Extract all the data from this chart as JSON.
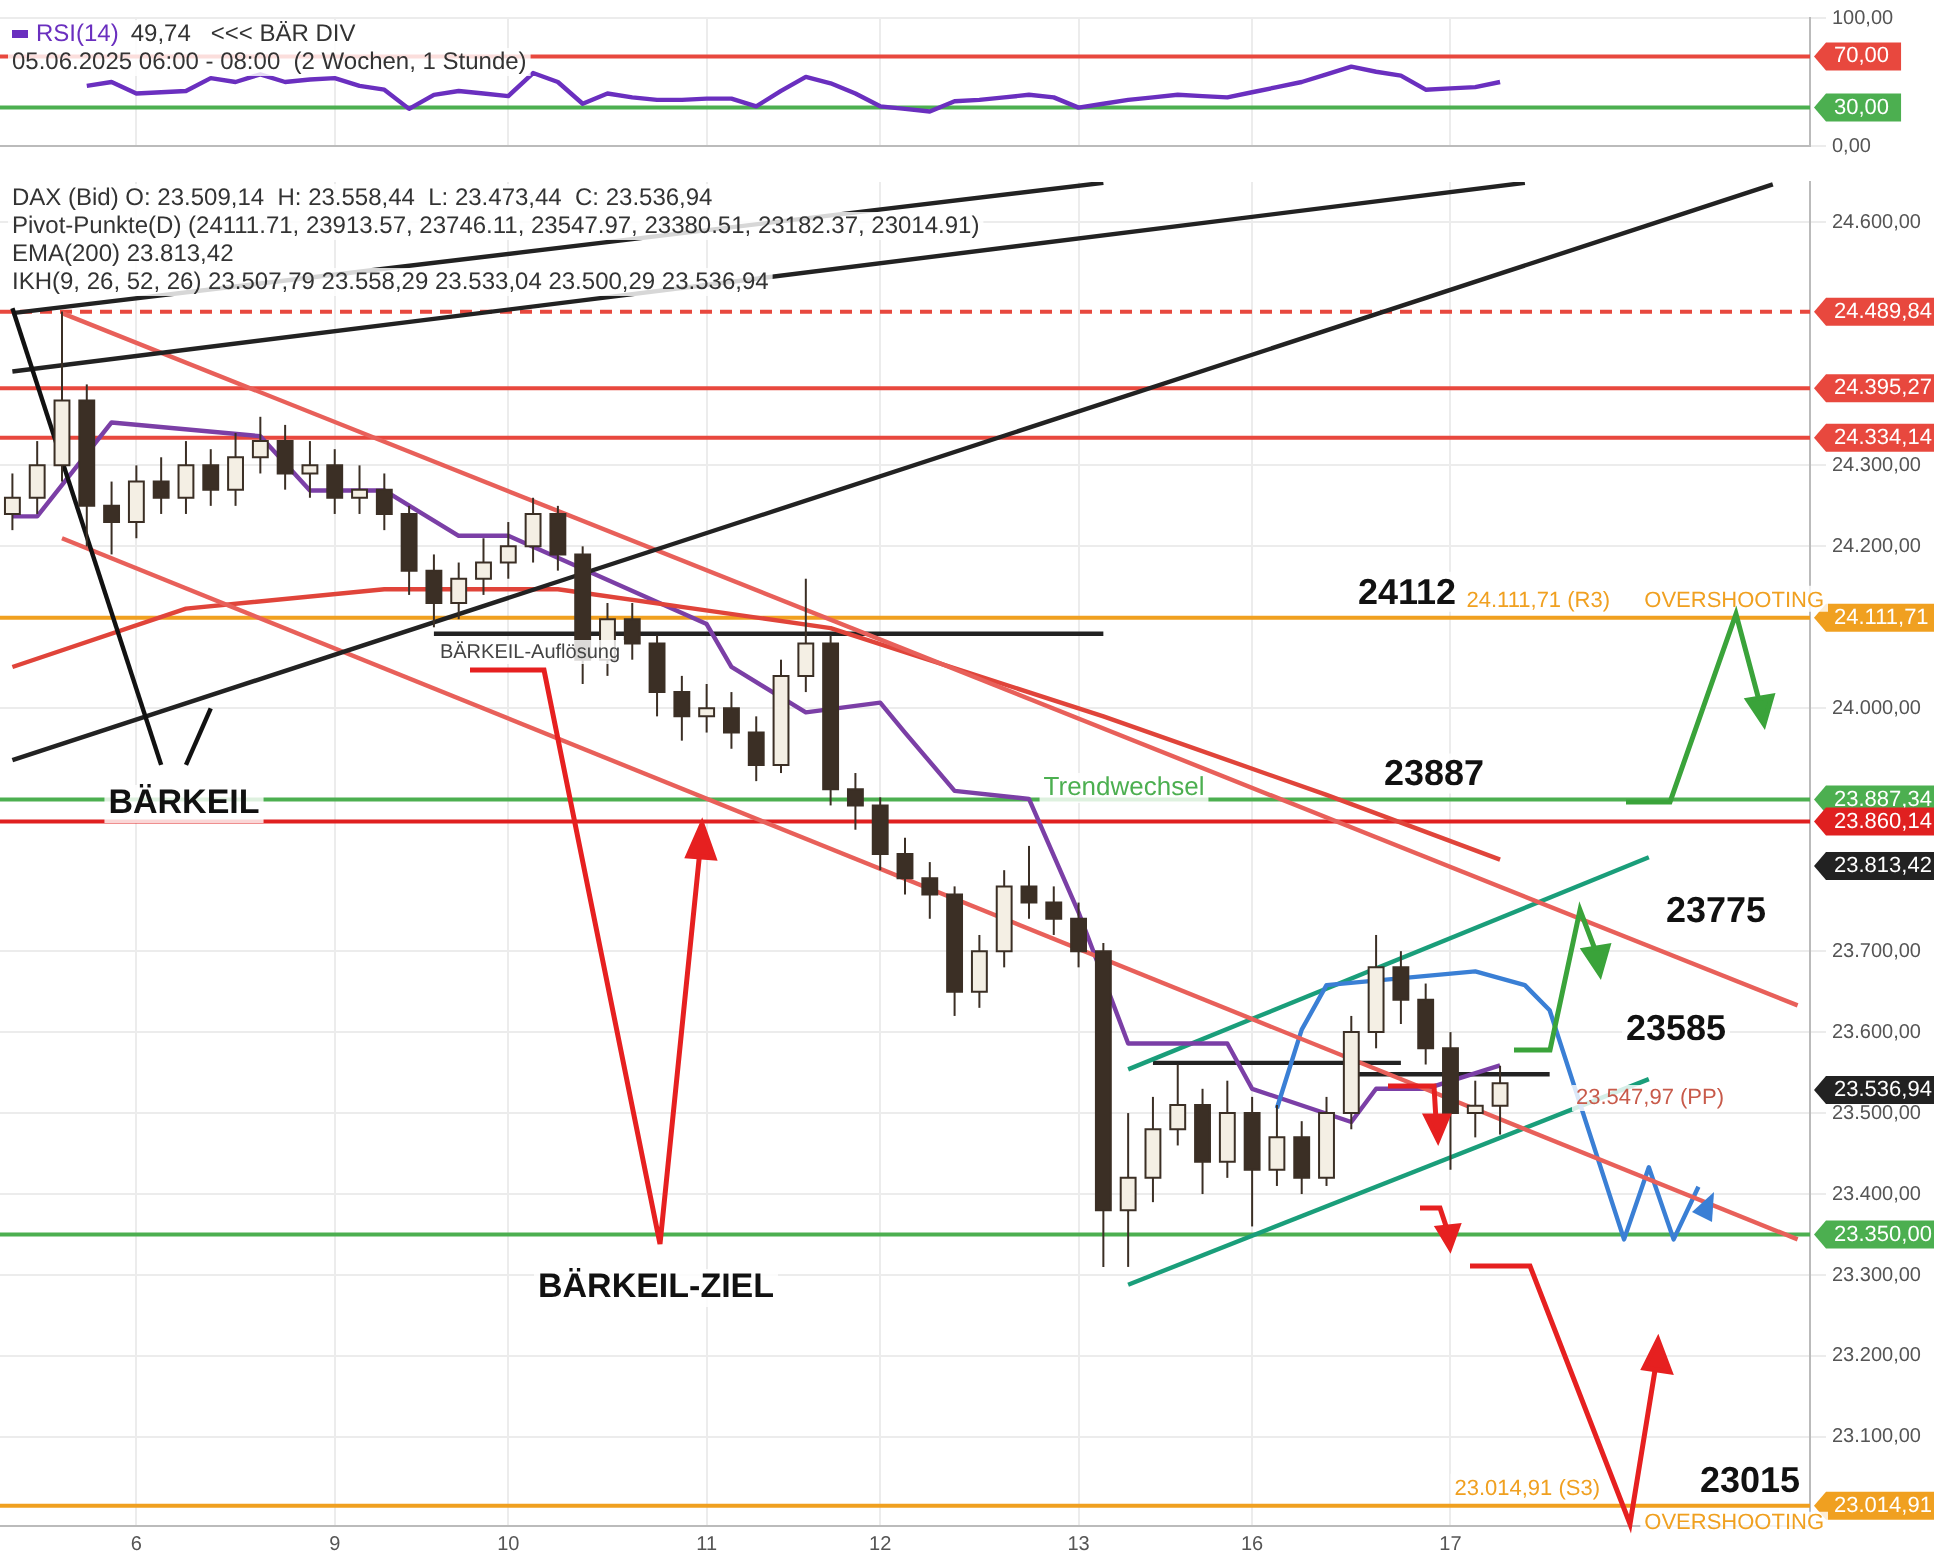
{
  "chart_data": [
    {
      "type": "line",
      "categories": [
        null,
        null,
        null,
        null,
        null,
        "6",
        null,
        null,
        null,
        null,
        null,
        null,
        null,
        "9",
        null,
        null,
        null,
        null,
        null,
        null,
        "10",
        null,
        null,
        null,
        null,
        null,
        null,
        null,
        "11",
        null,
        null,
        null,
        null,
        null,
        null,
        "12",
        null,
        null,
        null,
        null,
        null,
        null,
        null,
        "13",
        null,
        null,
        null,
        null,
        null,
        null,
        "16",
        null,
        null,
        null,
        null,
        null,
        null,
        null,
        "17",
        null,
        null,
        null,
        null,
        null,
        null,
        null,
        null,
        null,
        null,
        null,
        null,
        null,
        null
      ],
      "series": [
        {
          "name": "RSI(14)",
          "color": "#6a2fbf",
          "values": [
            null,
            null,
            null,
            47,
            50,
            41,
            42,
            43,
            53,
            50,
            56,
            50,
            52,
            53,
            47,
            44,
            29,
            40,
            43,
            41,
            39,
            57,
            50,
            33,
            41,
            38,
            36,
            36,
            37,
            37,
            31,
            43,
            54,
            49,
            41,
            31,
            29,
            27,
            35,
            36,
            38,
            40,
            38,
            30,
            33,
            36,
            38,
            40,
            39,
            38,
            42,
            46,
            50,
            56,
            62,
            58,
            55,
            44,
            45,
            46,
            50,
            null,
            null,
            null,
            null,
            null,
            null,
            null,
            null,
            null,
            null,
            null,
            null
          ]
        }
      ],
      "ylim": [
        0,
        100
      ],
      "yticks": [
        {
          "value": 100,
          "label": "100,00"
        },
        {
          "value": 0,
          "label": "0,00"
        }
      ],
      "ref_lines": [
        {
          "axis": "y",
          "value": 70,
          "label": "70,00",
          "color": "#e8483e"
        },
        {
          "axis": "y",
          "value": 30,
          "label": "30,00",
          "color": "#4caf50"
        }
      ],
      "annotations": [
        "49,74",
        "<<< BÄR DIV",
        "05.06.2025 06:00 - 08:00  (2 Wochen, 1 Stunde)"
      ],
      "tick_labels": "y",
      "grid": true,
      "legend": "top left"
    },
    {
      "type": "candlestick",
      "categories": [
        null,
        null,
        null,
        null,
        null,
        "6",
        null,
        null,
        null,
        null,
        null,
        null,
        null,
        "9",
        null,
        null,
        null,
        null,
        null,
        null,
        "10",
        null,
        null,
        null,
        null,
        null,
        null,
        null,
        "11",
        null,
        null,
        null,
        null,
        null,
        null,
        "12",
        null,
        null,
        null,
        null,
        null,
        null,
        null,
        "13",
        null,
        null,
        null,
        null,
        null,
        null,
        "16",
        null,
        null,
        null,
        null,
        null,
        null,
        null,
        "17",
        null,
        null,
        null,
        null,
        null,
        null,
        null,
        null,
        null,
        null,
        null,
        null,
        null,
        null
      ],
      "ohlc": [
        [
          24240,
          24290,
          24220,
          24260
        ],
        [
          24260,
          24330,
          24240,
          24300
        ],
        [
          24300,
          24490,
          24280,
          24380
        ],
        [
          24380,
          24400,
          24200,
          24250
        ],
        [
          24250,
          24280,
          24190,
          24230
        ],
        [
          24230,
          24300,
          24210,
          24280
        ],
        [
          24280,
          24310,
          24240,
          24260
        ],
        [
          24260,
          24330,
          24240,
          24300
        ],
        [
          24300,
          24320,
          24250,
          24270
        ],
        [
          24270,
          24340,
          24250,
          24310
        ],
        [
          24310,
          24360,
          24290,
          24330
        ],
        [
          24330,
          24350,
          24270,
          24290
        ],
        [
          24290,
          24330,
          24260,
          24300
        ],
        [
          24300,
          24320,
          24240,
          24260
        ],
        [
          24260,
          24300,
          24240,
          24270
        ],
        [
          24270,
          24290,
          24220,
          24240
        ],
        [
          24240,
          24250,
          24140,
          24170
        ],
        [
          24170,
          24190,
          24100,
          24130
        ],
        [
          24130,
          24180,
          24110,
          24160
        ],
        [
          24160,
          24210,
          24140,
          24180
        ],
        [
          24180,
          24230,
          24160,
          24200
        ],
        [
          24200,
          24260,
          24180,
          24240
        ],
        [
          24240,
          24250,
          24170,
          24190
        ],
        [
          24190,
          24200,
          24030,
          24060
        ],
        [
          24060,
          24130,
          24040,
          24110
        ],
        [
          24110,
          24130,
          24060,
          24080
        ],
        [
          24080,
          24090,
          23990,
          24020
        ],
        [
          24020,
          24040,
          23960,
          23990
        ],
        [
          23990,
          24030,
          23970,
          24000
        ],
        [
          24000,
          24020,
          23950,
          23970
        ],
        [
          23970,
          23990,
          23910,
          23930
        ],
        [
          23930,
          24060,
          23920,
          24040
        ],
        [
          24040,
          24160,
          24020,
          24080
        ],
        [
          24080,
          24090,
          23880,
          23900
        ],
        [
          23900,
          23920,
          23850,
          23880
        ],
        [
          23880,
          23890,
          23800,
          23820
        ],
        [
          23820,
          23840,
          23770,
          23790
        ],
        [
          23790,
          23810,
          23740,
          23770
        ],
        [
          23770,
          23780,
          23620,
          23650
        ],
        [
          23650,
          23720,
          23630,
          23700
        ],
        [
          23700,
          23800,
          23680,
          23780
        ],
        [
          23780,
          23830,
          23740,
          23760
        ],
        [
          23760,
          23780,
          23720,
          23740
        ],
        [
          23740,
          23760,
          23680,
          23700
        ],
        [
          23700,
          23710,
          23310,
          23380
        ],
        [
          23380,
          23500,
          23310,
          23420
        ],
        [
          23420,
          23520,
          23390,
          23480
        ],
        [
          23480,
          23560,
          23460,
          23510
        ],
        [
          23510,
          23530,
          23400,
          23440
        ],
        [
          23440,
          23540,
          23420,
          23500
        ],
        [
          23500,
          23520,
          23360,
          23430
        ],
        [
          23430,
          23510,
          23410,
          23470
        ],
        [
          23470,
          23490,
          23400,
          23420
        ],
        [
          23420,
          23520,
          23410,
          23500
        ],
        [
          23500,
          23620,
          23480,
          23600
        ],
        [
          23600,
          23720,
          23580,
          23680
        ],
        [
          23680,
          23700,
          23610,
          23640
        ],
        [
          23640,
          23660,
          23560,
          23580
        ],
        [
          23580,
          23600,
          23430,
          23500
        ],
        [
          23500,
          23540,
          23470,
          23509.14
        ],
        [
          23509.14,
          23558.44,
          23473.44,
          23536.94
        ],
        null,
        null,
        null,
        null,
        null,
        null,
        null,
        null,
        null,
        null,
        null,
        null
      ],
      "series": [
        {
          "type": "line",
          "color": "#111111",
          "values": [
            24494,
            null,
            null,
            null,
            null,
            null,
            23930,
            null,
            null,
            null,
            null,
            null,
            null,
            null,
            null,
            null,
            null,
            null,
            null,
            null,
            null,
            null,
            null,
            null,
            null,
            null,
            null,
            null,
            null,
            null,
            null,
            null,
            null,
            null,
            null,
            null,
            null,
            null,
            null,
            null,
            null,
            null,
            null,
            null,
            null,
            null,
            null,
            null,
            null,
            null,
            null,
            null,
            null,
            null,
            null,
            null,
            null,
            null,
            null,
            null,
            null,
            null,
            null,
            null,
            null,
            null,
            null,
            null,
            null,
            null,
            null,
            null,
            null
          ]
        },
        {
          "type": "line",
          "color": "#111111",
          "values": [
            null,
            null,
            null,
            null,
            null,
            null,
            null,
            23930,
            24000,
            null,
            null,
            null,
            null,
            null,
            null,
            null,
            null,
            null,
            null,
            null,
            null,
            null,
            null,
            null,
            null,
            null,
            null,
            null,
            null,
            null,
            null,
            null,
            null,
            null,
            null,
            null,
            null,
            null,
            null,
            null,
            null,
            null,
            null,
            null,
            null,
            null,
            null,
            null,
            null,
            null,
            null,
            null,
            null,
            null,
            null,
            null,
            null,
            null,
            null,
            null,
            null,
            null,
            null,
            null,
            null,
            null,
            null,
            null,
            null,
            null,
            null,
            null,
            null
          ]
        },
        {
          "type": "line",
          "color": "#222222",
          "values": [
            24488,
            null,
            null,
            null,
            null,
            null,
            null,
            null,
            null,
            null,
            null,
            null,
            null,
            null,
            null,
            null,
            null,
            null,
            null,
            null,
            null,
            null,
            null,
            null,
            null,
            null,
            null,
            null,
            null,
            null,
            null,
            null,
            null,
            null,
            null,
            null,
            null,
            null,
            null,
            null,
            null,
            null,
            null,
            null,
            24649,
            null,
            null,
            null,
            null,
            null,
            null,
            null,
            null,
            null,
            null,
            null,
            null,
            null,
            null,
            null,
            null,
            null,
            null,
            null,
            null,
            null,
            null,
            null,
            null,
            null,
            null,
            null,
            null
          ]
        },
        {
          "type": "line",
          "color": "#222222",
          "values": [
            24416,
            null,
            null,
            null,
            null,
            null,
            null,
            null,
            null,
            null,
            null,
            null,
            null,
            null,
            null,
            null,
            null,
            null,
            null,
            null,
            null,
            null,
            null,
            null,
            null,
            null,
            null,
            null,
            null,
            null,
            null,
            null,
            null,
            null,
            null,
            null,
            null,
            null,
            null,
            null,
            null,
            null,
            null,
            null,
            null,
            null,
            null,
            null,
            null,
            null,
            null,
            null,
            null,
            null,
            null,
            null,
            null,
            null,
            null,
            null,
            null,
            24649,
            null,
            null,
            null,
            null,
            null,
            null,
            null,
            null,
            null,
            null,
            null
          ]
        },
        {
          "type": "line",
          "color": "#222222",
          "values": [
            23936,
            null,
            null,
            null,
            null,
            null,
            null,
            null,
            null,
            null,
            null,
            null,
            null,
            null,
            null,
            null,
            null,
            null,
            null,
            null,
            null,
            null,
            null,
            null,
            null,
            null,
            null,
            null,
            null,
            null,
            null,
            null,
            null,
            null,
            null,
            null,
            null,
            null,
            null,
            null,
            null,
            null,
            null,
            null,
            null,
            null,
            null,
            null,
            null,
            null,
            null,
            null,
            null,
            null,
            null,
            null,
            null,
            null,
            null,
            null,
            null,
            null,
            null,
            null,
            null,
            null,
            null,
            null,
            null,
            null,
            null,
            24647,
            null
          ]
        },
        {
          "type": "line",
          "color": "#e8605a",
          "values": [
            null,
            null,
            24488,
            null,
            null,
            null,
            null,
            null,
            null,
            null,
            null,
            null,
            null,
            null,
            null,
            null,
            null,
            null,
            null,
            null,
            null,
            null,
            null,
            null,
            null,
            null,
            null,
            null,
            null,
            null,
            null,
            null,
            null,
            null,
            null,
            null,
            null,
            null,
            null,
            null,
            null,
            null,
            null,
            null,
            null,
            null,
            null,
            null,
            null,
            null,
            null,
            null,
            null,
            null,
            null,
            null,
            null,
            null,
            null,
            null,
            null,
            null,
            null,
            null,
            null,
            null,
            null,
            null,
            null,
            null,
            null,
            null,
            23633
          ]
        },
        {
          "type": "line",
          "color": "#e8605a",
          "values": [
            null,
            null,
            24210,
            null,
            null,
            null,
            null,
            null,
            null,
            null,
            null,
            null,
            null,
            null,
            null,
            null,
            null,
            null,
            null,
            null,
            null,
            null,
            null,
            null,
            null,
            null,
            null,
            null,
            null,
            null,
            null,
            null,
            null,
            null,
            null,
            null,
            null,
            null,
            null,
            null,
            null,
            null,
            null,
            null,
            null,
            null,
            null,
            null,
            null,
            null,
            null,
            null,
            null,
            null,
            null,
            null,
            null,
            null,
            null,
            null,
            null,
            null,
            null,
            null,
            null,
            null,
            null,
            null,
            null,
            null,
            null,
            null,
            23344
          ]
        },
        {
          "type": "line",
          "color": "#e0443a",
          "values": [
            24051,
            null,
            null,
            null,
            null,
            null,
            null,
            24123,
            null,
            null,
            null,
            null,
            null,
            null,
            null,
            24147,
            null,
            null,
            null,
            null,
            null,
            null,
            24147,
            null,
            null,
            null,
            null,
            null,
            null,
            null,
            null,
            null,
            null,
            24099,
            null,
            null,
            null,
            null,
            null,
            null,
            null,
            null,
            null,
            null,
            23990,
            null,
            null,
            null,
            null,
            null,
            null,
            null,
            null,
            23893,
            null,
            null,
            null,
            null,
            null,
            null,
            23813,
            null,
            null,
            null,
            null,
            null,
            null,
            null,
            null,
            null,
            null,
            null,
            null
          ]
        },
        {
          "type": "line",
          "color": "#3a7fd5",
          "values": [
            null,
            null,
            null,
            null,
            null,
            null,
            null,
            null,
            null,
            null,
            null,
            null,
            null,
            null,
            null,
            null,
            null,
            null,
            null,
            null,
            null,
            null,
            null,
            null,
            null,
            null,
            null,
            null,
            null,
            null,
            null,
            null,
            null,
            null,
            null,
            null,
            null,
            null,
            null,
            null,
            null,
            null,
            null,
            null,
            null,
            null,
            null,
            null,
            null,
            null,
            null,
            23506,
            23603,
            23658,
            null,
            null,
            null,
            null,
            null,
            23675,
            null,
            23658,
            23627,
            null,
            null,
            23344,
            23433,
            23344,
            23409,
            null,
            null,
            null,
            null
          ]
        },
        {
          "type": "line",
          "color": "#7b3fa6",
          "values": [
            24237,
            24237,
            null,
            null,
            24353,
            null,
            null,
            null,
            null,
            null,
            24336,
            null,
            24269,
            null,
            null,
            24269,
            null,
            null,
            24213,
            null,
            24213,
            null,
            null,
            null,
            null,
            null,
            null,
            null,
            24104,
            24051,
            null,
            null,
            23995,
            null,
            null,
            24007,
            23970,
            null,
            23898,
            null,
            null,
            23888,
            null,
            23748,
            null,
            23586,
            null,
            null,
            null,
            23586,
            23530,
            null,
            null,
            null,
            23489,
            23530,
            null,
            23530,
            null,
            null,
            23559,
            null,
            null,
            null,
            null,
            null,
            null,
            null,
            null,
            null,
            null,
            null,
            null
          ]
        },
        {
          "type": "line",
          "color": "#1a9e7a",
          "values": [
            null,
            null,
            null,
            null,
            null,
            null,
            null,
            null,
            null,
            null,
            null,
            null,
            null,
            null,
            null,
            null,
            null,
            null,
            null,
            null,
            null,
            null,
            null,
            null,
            null,
            null,
            null,
            null,
            null,
            null,
            null,
            null,
            null,
            null,
            null,
            null,
            null,
            null,
            null,
            null,
            null,
            null,
            null,
            null,
            null,
            23288,
            null,
            null,
            null,
            null,
            null,
            null,
            null,
            null,
            null,
            null,
            null,
            null,
            null,
            null,
            null,
            null,
            null,
            null,
            null,
            null,
            23542,
            null,
            null,
            null,
            null,
            null,
            null
          ]
        },
        {
          "type": "line",
          "color": "#1a9e7a",
          "values": [
            null,
            null,
            null,
            null,
            null,
            null,
            null,
            null,
            null,
            null,
            null,
            null,
            null,
            null,
            null,
            null,
            null,
            null,
            null,
            null,
            null,
            null,
            null,
            null,
            null,
            null,
            null,
            null,
            null,
            null,
            null,
            null,
            null,
            null,
            null,
            null,
            null,
            null,
            null,
            null,
            null,
            null,
            null,
            null,
            null,
            23554,
            null,
            null,
            null,
            null,
            null,
            null,
            null,
            null,
            null,
            null,
            null,
            null,
            null,
            null,
            null,
            null,
            null,
            null,
            null,
            null,
            23816,
            null,
            null,
            null,
            null,
            null,
            null
          ]
        },
        {
          "type": "line",
          "color": "#222222",
          "values": [
            null,
            null,
            null,
            null,
            null,
            null,
            null,
            null,
            null,
            null,
            null,
            null,
            null,
            null,
            null,
            null,
            null,
            24092,
            null,
            null,
            null,
            null,
            null,
            null,
            null,
            null,
            null,
            null,
            null,
            null,
            null,
            null,
            null,
            null,
            null,
            null,
            null,
            null,
            null,
            null,
            null,
            null,
            null,
            null,
            24092,
            null,
            null,
            null,
            null,
            null,
            null,
            null,
            null,
            null,
            null,
            null,
            null,
            null,
            null,
            null,
            null,
            null,
            null,
            null,
            null,
            null,
            null,
            null,
            null,
            null,
            null,
            null,
            null
          ]
        },
        {
          "type": "line",
          "color": "#222222",
          "values": [
            null,
            null,
            null,
            null,
            null,
            null,
            null,
            null,
            null,
            null,
            null,
            null,
            null,
            null,
            null,
            null,
            null,
            null,
            null,
            null,
            null,
            null,
            null,
            null,
            null,
            null,
            null,
            null,
            null,
            null,
            null,
            null,
            null,
            null,
            null,
            null,
            null,
            null,
            null,
            null,
            null,
            null,
            null,
            null,
            null,
            null,
            23562,
            null,
            null,
            null,
            null,
            null,
            null,
            null,
            null,
            null,
            23562,
            null,
            null,
            null,
            null,
            null,
            null,
            null,
            null,
            null,
            null,
            null,
            null,
            null,
            null,
            null,
            null
          ]
        },
        {
          "type": "line",
          "color": "#222222",
          "values": [
            null,
            null,
            null,
            null,
            null,
            null,
            null,
            null,
            null,
            null,
            null,
            null,
            null,
            null,
            null,
            null,
            null,
            null,
            null,
            null,
            null,
            null,
            null,
            null,
            null,
            null,
            null,
            null,
            null,
            null,
            null,
            null,
            null,
            null,
            null,
            null,
            null,
            null,
            null,
            null,
            null,
            null,
            null,
            null,
            null,
            null,
            null,
            null,
            null,
            null,
            null,
            null,
            null,
            null,
            23548,
            null,
            null,
            null,
            null,
            null,
            null,
            null,
            23548,
            null,
            null,
            null,
            null,
            null,
            null,
            null,
            null,
            null,
            null
          ]
        }
      ],
      "ylim": [
        22990,
        24650
      ],
      "yticks": [
        {
          "value": 24600,
          "label": "24.600,00"
        },
        {
          "value": 24300,
          "label": "24.300,00"
        },
        {
          "value": 24200,
          "label": "24.200,00"
        },
        {
          "value": 24000,
          "label": "24.000,00"
        },
        {
          "value": 23700,
          "label": "23.700,00"
        },
        {
          "value": 23600,
          "label": "23.600,00"
        },
        {
          "value": 23500,
          "label": "23.500,00"
        },
        {
          "value": 23400,
          "label": "23.400,00"
        },
        {
          "value": 23300,
          "label": "23.300,00"
        },
        {
          "value": 23200,
          "label": "23.200,00"
        },
        {
          "value": 23100,
          "label": "23.100,00"
        }
      ],
      "ref_lines": [
        {
          "axis": "y",
          "value": 24489.84,
          "label": "24.489,84",
          "color": "#e8483e",
          "line_style": "dashed"
        },
        {
          "axis": "y",
          "value": 24395.27,
          "label": "24.395,27",
          "color": "#e8483e"
        },
        {
          "axis": "y",
          "value": 24334.14,
          "label": "24.334,14",
          "color": "#e8483e"
        },
        {
          "axis": "y",
          "value": 24111.71,
          "label": "24.111,71",
          "color": "#f0a020"
        },
        {
          "axis": "y",
          "value": 23887.34,
          "label": "23.887,34",
          "color": "#4caf50"
        },
        {
          "axis": "y",
          "value": 23860.14,
          "label": "23.860,14",
          "color": "#e02020"
        },
        {
          "axis": "y",
          "value": 23350,
          "label": "23.350,00",
          "color": "#4caf50"
        },
        {
          "axis": "y",
          "value": 23014.91,
          "label": "23.014,91",
          "color": "#f0a020"
        }
      ],
      "annotations": [
        "DAX (Bid) O: 23.509,14  H: 23.558,44  L: 23.473,44  C: 23.536,94",
        "Pivot-Punkte(D) (24111.71, 23913.57, 23746.11, 23547.97, 23380.51, 23182.37, 23014.91)",
        "EMA(200) 23.813,42",
        "IKH(9, 26, 52, 26) 23.507,79 23.558,29 23.533,04 23.500,29 23.536,94",
        "BÄRKEIL",
        "BÄRKEIL-ZIEL",
        "BÄRKEIL-Auflösung",
        "Trendwechsel",
        "23775",
        "23585",
        "23.813,42",
        "23.536,94",
        {
          "text": "OVERSHOOTING",
          "y": 24111.71
        },
        {
          "text": "24.111,71 (R3)",
          "y": 24111.71
        },
        {
          "text": "24112",
          "y": 24111.71
        },
        {
          "text": "23887",
          "y": 23887.34
        },
        {
          "text": "OVERSHOOTING",
          "y": 23014.91
        },
        {
          "text": "23015",
          "y": 23014.91
        },
        {
          "text": "23.014,91 (S3)",
          "y": 23014.91
        },
        "23.547,97 (PP)"
      ],
      "grid": true,
      "legend": false
    }
  ]
}
